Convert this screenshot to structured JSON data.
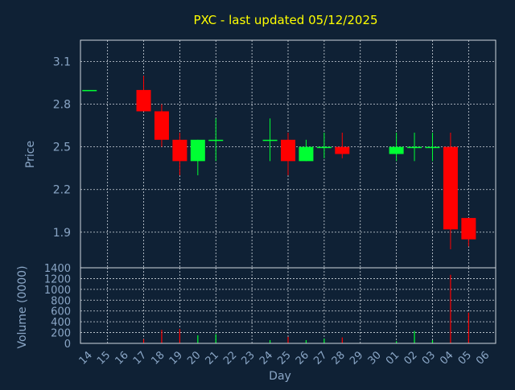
{
  "chart_data": [
    {
      "type": "candlestick",
      "title": "PXC - last updated 05/12/2025",
      "ylabel": "Price",
      "ylim": [
        1.65,
        3.25
      ],
      "yticks": [
        "3.1",
        "2.8",
        "2.5",
        "2.2",
        "1.9"
      ],
      "ytick_values": [
        3.1,
        2.8,
        2.5,
        2.2,
        1.9
      ],
      "grid": true,
      "up_color": "#00ff33",
      "down_color": "#ff0000",
      "candles": [
        {
          "day": "14",
          "open": 2.9,
          "close": 2.9,
          "high": 2.9,
          "low": 2.9
        },
        {
          "day": "17",
          "open": 2.9,
          "close": 2.75,
          "high": 3.0,
          "low": 2.75
        },
        {
          "day": "18",
          "open": 2.75,
          "close": 2.55,
          "high": 2.8,
          "low": 2.5
        },
        {
          "day": "19",
          "open": 2.55,
          "close": 2.4,
          "high": 2.6,
          "low": 2.3
        },
        {
          "day": "20",
          "open": 2.4,
          "close": 2.55,
          "high": 2.55,
          "low": 2.3
        },
        {
          "day": "21",
          "open": 2.55,
          "close": 2.55,
          "high": 2.7,
          "low": 2.4
        },
        {
          "day": "24",
          "open": 2.55,
          "close": 2.55,
          "high": 2.7,
          "low": 2.4
        },
        {
          "day": "25",
          "open": 2.55,
          "close": 2.4,
          "high": 2.6,
          "low": 2.3
        },
        {
          "day": "26",
          "open": 2.4,
          "close": 2.5,
          "high": 2.55,
          "low": 2.4
        },
        {
          "day": "27",
          "open": 2.5,
          "close": 2.5,
          "high": 2.6,
          "low": 2.42
        },
        {
          "day": "28",
          "open": 2.5,
          "close": 2.45,
          "high": 2.6,
          "low": 2.42
        },
        {
          "day": "01",
          "open": 2.45,
          "close": 2.5,
          "high": 2.6,
          "low": 2.4
        },
        {
          "day": "02",
          "open": 2.5,
          "close": 2.5,
          "high": 2.6,
          "low": 2.4
        },
        {
          "day": "03",
          "open": 2.5,
          "close": 2.5,
          "high": 2.6,
          "low": 2.4
        },
        {
          "day": "04",
          "open": 2.5,
          "close": 1.92,
          "high": 2.6,
          "low": 1.78
        },
        {
          "day": "05",
          "open": 2.0,
          "close": 1.85,
          "high": 2.0,
          "low": 1.8
        }
      ]
    },
    {
      "type": "bar",
      "ylabel": "Volume (0000)",
      "xlabel": "Day",
      "ylim": [
        0,
        1400
      ],
      "yticks": [
        "1400",
        "1200",
        "1000",
        "800",
        "600",
        "400",
        "200",
        "0"
      ],
      "ytick_values": [
        1400,
        1200,
        1000,
        800,
        600,
        400,
        200,
        0
      ],
      "categories": [
        "14",
        "15",
        "16",
        "17",
        "18",
        "19",
        "20",
        "21",
        "22",
        "23",
        "24",
        "25",
        "26",
        "27",
        "28",
        "29",
        "30",
        "01",
        "02",
        "03",
        "04",
        "05",
        "06"
      ],
      "values": [
        {
          "day": "17",
          "value": 80,
          "color": "#ff0000"
        },
        {
          "day": "18",
          "value": 250,
          "color": "#ff0000"
        },
        {
          "day": "19",
          "value": 270,
          "color": "#ff0000"
        },
        {
          "day": "20",
          "value": 150,
          "color": "#00ff33"
        },
        {
          "day": "21",
          "value": 170,
          "color": "#00ff33"
        },
        {
          "day": "24",
          "value": 60,
          "color": "#00ff33"
        },
        {
          "day": "25",
          "value": 120,
          "color": "#ff0000"
        },
        {
          "day": "26",
          "value": 60,
          "color": "#00ff33"
        },
        {
          "day": "27",
          "value": 90,
          "color": "#00ff33"
        },
        {
          "day": "28",
          "value": 110,
          "color": "#ff0000"
        },
        {
          "day": "01",
          "value": 40,
          "color": "#00ff33"
        },
        {
          "day": "02",
          "value": 230,
          "color": "#00ff33"
        },
        {
          "day": "03",
          "value": 60,
          "color": "#00ff33"
        },
        {
          "day": "04",
          "value": 1270,
          "color": "#ff0000"
        },
        {
          "day": "05",
          "value": 570,
          "color": "#ff0000"
        }
      ],
      "grid": true
    }
  ]
}
